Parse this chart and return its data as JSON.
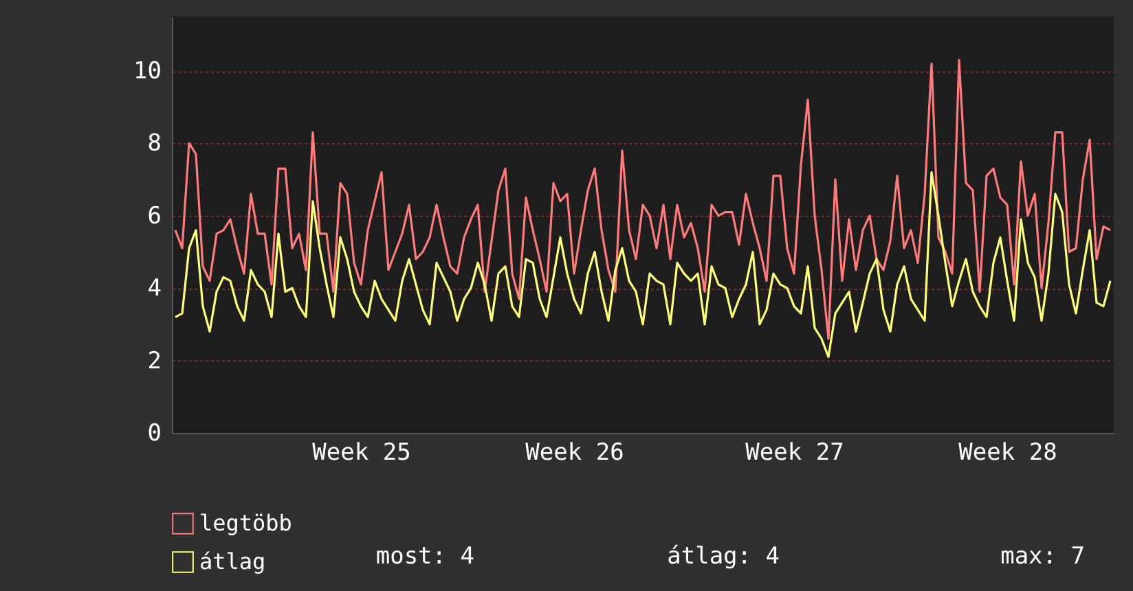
{
  "chart_data": {
    "type": "line",
    "ylim": [
      0,
      11.5
    ],
    "yticks": [
      0,
      2,
      4,
      6,
      8,
      10
    ],
    "categories": [
      null,
      null,
      null,
      null,
      null,
      null,
      null,
      null,
      null,
      null,
      null,
      null,
      null,
      null,
      null,
      null,
      null,
      null,
      null,
      null,
      null,
      null,
      null,
      null,
      null,
      null,
      null,
      "Week 25",
      null,
      null,
      null,
      null,
      null,
      null,
      null,
      null,
      null,
      null,
      null,
      null,
      null,
      null,
      null,
      null,
      null,
      null,
      null,
      null,
      null,
      null,
      null,
      null,
      null,
      null,
      null,
      null,
      null,
      null,
      "Week 26",
      null,
      null,
      null,
      null,
      null,
      null,
      null,
      null,
      null,
      null,
      null,
      null,
      null,
      null,
      null,
      null,
      null,
      null,
      null,
      null,
      null,
      null,
      null,
      null,
      null,
      null,
      null,
      null,
      null,
      null,
      null,
      "Week 27",
      null,
      null,
      null,
      null,
      null,
      null,
      null,
      null,
      null,
      null,
      null,
      null,
      null,
      null,
      null,
      null,
      null,
      null,
      null,
      null,
      null,
      null,
      null,
      null,
      null,
      null,
      null,
      null,
      null,
      null,
      "Week 28",
      null,
      null,
      null,
      null,
      null,
      null,
      null,
      null,
      null,
      null,
      null,
      null,
      null,
      null,
      null
    ],
    "grid": "y",
    "legend": "bottom left",
    "annotations": [
      "most: 4",
      "átlag: 4",
      "max: 7"
    ],
    "series": [
      {
        "name": "legtöbb",
        "color": "#ff7b7b",
        "values": [
          5.6,
          5.1,
          8.0,
          7.7,
          4.6,
          4.2,
          5.5,
          5.6,
          5.9,
          5.1,
          4.4,
          6.6,
          5.5,
          5.5,
          4.1,
          7.3,
          7.3,
          5.1,
          5.5,
          4.5,
          8.3,
          5.5,
          5.5,
          3.9,
          6.9,
          6.6,
          4.7,
          4.1,
          5.6,
          6.4,
          7.2,
          4.5,
          5.0,
          5.5,
          6.3,
          4.8,
          5.0,
          5.4,
          6.3,
          5.4,
          4.6,
          4.4,
          5.4,
          5.9,
          6.3,
          3.9,
          5.3,
          6.7,
          7.3,
          4.4,
          3.7,
          6.5,
          5.6,
          4.8,
          3.9,
          6.9,
          6.4,
          6.6,
          4.4,
          5.6,
          6.7,
          7.3,
          5.6,
          4.5,
          3.9,
          7.8,
          5.6,
          4.8,
          6.3,
          6.0,
          5.1,
          6.3,
          4.8,
          6.3,
          5.4,
          5.8,
          5.1,
          3.9,
          6.3,
          6.0,
          6.1,
          6.1,
          5.2,
          6.6,
          5.8,
          5.1,
          4.2,
          7.1,
          7.1,
          5.1,
          4.4,
          7.4,
          9.2,
          6.0,
          4.5,
          2.6,
          7.0,
          4.2,
          5.9,
          4.5,
          5.6,
          6.0,
          4.8,
          4.5,
          5.3,
          7.1,
          5.1,
          5.6,
          4.7,
          6.6,
          10.2,
          5.4,
          5.0,
          4.4,
          10.3,
          6.9,
          6.7,
          3.9,
          7.1,
          7.3,
          6.5,
          6.3,
          4.1,
          7.5,
          6.0,
          6.6,
          4.0,
          5.8,
          8.3,
          8.3,
          5.0,
          5.1,
          7.0,
          8.1,
          4.8,
          5.7,
          5.6
        ]
      },
      {
        "name": "átlag",
        "color": "#ffff77",
        "values": [
          3.2,
          3.3,
          5.1,
          5.6,
          3.5,
          2.8,
          3.9,
          4.3,
          4.2,
          3.5,
          3.1,
          4.5,
          4.1,
          3.9,
          3.2,
          5.5,
          3.9,
          4.0,
          3.5,
          3.2,
          6.4,
          5.1,
          4.1,
          3.2,
          5.4,
          4.8,
          3.9,
          3.5,
          3.2,
          4.2,
          3.7,
          3.4,
          3.1,
          4.2,
          4.8,
          4.1,
          3.4,
          3.0,
          4.7,
          4.3,
          3.9,
          3.1,
          3.7,
          4.0,
          4.7,
          4.1,
          3.1,
          4.4,
          4.6,
          3.5,
          3.2,
          4.8,
          4.7,
          3.7,
          3.2,
          4.3,
          5.4,
          4.4,
          3.7,
          3.3,
          4.4,
          5.0,
          3.9,
          3.1,
          4.5,
          5.1,
          4.2,
          3.9,
          3.0,
          4.4,
          4.2,
          4.1,
          3.0,
          4.7,
          4.4,
          4.2,
          4.4,
          3.0,
          4.6,
          4.1,
          4.0,
          3.2,
          3.7,
          4.1,
          5.0,
          3.0,
          3.4,
          4.4,
          4.1,
          4.0,
          3.5,
          3.3,
          4.6,
          2.9,
          2.6,
          2.1,
          3.3,
          3.6,
          3.9,
          2.8,
          3.6,
          4.4,
          4.8,
          3.4,
          2.8,
          4.1,
          4.6,
          3.7,
          3.4,
          3.1,
          7.2,
          6.0,
          4.7,
          3.5,
          4.2,
          4.8,
          3.9,
          3.5,
          3.2,
          4.7,
          5.4,
          4.2,
          3.1,
          5.9,
          4.7,
          4.3,
          3.1,
          4.4,
          6.6,
          6.1,
          4.1,
          3.3,
          4.5,
          5.6,
          3.6,
          3.5,
          4.2
        ]
      }
    ]
  }
}
